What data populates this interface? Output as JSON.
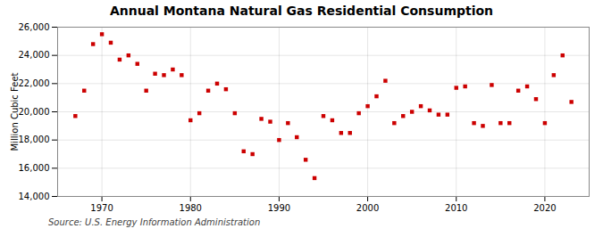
{
  "chart_data": {
    "type": "scatter",
    "title": "Annual Montana Natural Gas Residential Consumption",
    "ylabel": "Million Cubic Feet",
    "source": "Source: U.S. Energy Information Administration",
    "x": [
      1967,
      1968,
      1969,
      1970,
      1971,
      1972,
      1973,
      1974,
      1975,
      1976,
      1977,
      1978,
      1979,
      1980,
      1981,
      1982,
      1983,
      1984,
      1985,
      1986,
      1987,
      1988,
      1989,
      1990,
      1991,
      1992,
      1993,
      1994,
      1995,
      1996,
      1997,
      1998,
      1999,
      2000,
      2001,
      2002,
      2003,
      2004,
      2005,
      2006,
      2007,
      2008,
      2009,
      2010,
      2011,
      2012,
      2013,
      2014,
      2015,
      2016,
      2017,
      2018,
      2019,
      2020,
      2021,
      2022,
      2023
    ],
    "values": [
      19700,
      21500,
      24800,
      25500,
      24900,
      23700,
      24000,
      23400,
      21500,
      22700,
      22600,
      23000,
      22600,
      19400,
      19900,
      21500,
      22000,
      21600,
      19900,
      17200,
      17000,
      19500,
      19300,
      18000,
      19200,
      18200,
      16600,
      15300,
      19700,
      19400,
      18500,
      18500,
      19900,
      20400,
      21100,
      22200,
      19200,
      19700,
      20000,
      20400,
      20100,
      19800,
      19800,
      21700,
      21800,
      19200,
      19000,
      21900,
      19200,
      19200,
      21500,
      21800,
      20900,
      19200,
      22600,
      24000,
      20700
    ],
    "color": "#cc0000",
    "marker": "square",
    "xlim": [
      1965,
      2025
    ],
    "ylim": [
      14000,
      26000
    ],
    "xticks": [
      1970,
      1980,
      1990,
      2000,
      2010,
      2020
    ],
    "yticks": [
      {
        "value": 14000,
        "label": "14,000"
      },
      {
        "value": 16000,
        "label": "16,000"
      },
      {
        "value": 18000,
        "label": "18,000"
      },
      {
        "value": 20000,
        "label": "20,000"
      },
      {
        "value": 22000,
        "label": "22,000"
      },
      {
        "value": 24000,
        "label": "24,000"
      },
      {
        "value": 26000,
        "label": "26,000"
      }
    ],
    "grid": true
  }
}
